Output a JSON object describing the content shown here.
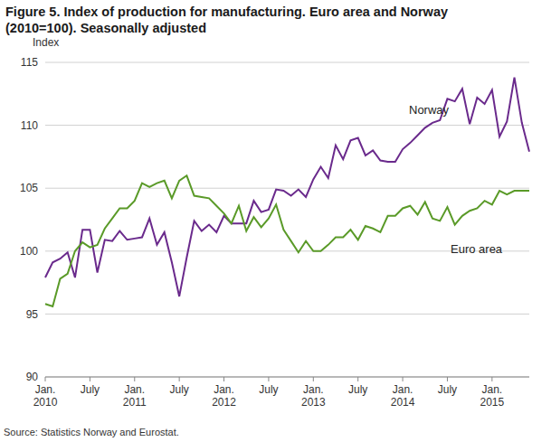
{
  "chart_data": {
    "type": "line",
    "title": "Figure 5. Index of production for manufacturing. Euro area and Norway (2010=100). Seasonally adjusted",
    "y_label": "Index",
    "source": "Source: Statistics Norway and Eurostat.",
    "categories": [
      "Jan. 2010",
      null,
      null,
      null,
      null,
      null,
      "July",
      null,
      null,
      null,
      null,
      null,
      "Jan. 2011",
      null,
      null,
      null,
      null,
      null,
      "July",
      null,
      null,
      null,
      null,
      null,
      "Jan. 2012",
      null,
      null,
      null,
      null,
      null,
      "July",
      null,
      null,
      null,
      null,
      null,
      "Jan. 2013",
      null,
      null,
      null,
      null,
      null,
      "July",
      null,
      null,
      null,
      null,
      null,
      "Jan. 2014",
      null,
      null,
      null,
      null,
      null,
      "July",
      null,
      null,
      null,
      null,
      null,
      "Jan. 2015",
      null,
      null,
      null,
      null,
      null
    ],
    "series": [
      {
        "name": "Norway",
        "color": "#6a2a8c",
        "values": [
          97.9,
          99.1,
          99.4,
          99.9,
          97.9,
          101.7,
          101.7,
          98.3,
          100.9,
          100.8,
          101.6,
          100.9,
          101.0,
          101.1,
          102.6,
          100.5,
          101.5,
          99.1,
          96.4,
          99.5,
          102.4,
          101.6,
          102.1,
          101.5,
          102.8,
          102.2,
          102.2,
          102.2,
          104.0,
          103.1,
          103.3,
          104.9,
          104.8,
          104.4,
          104.9,
          104.3,
          105.7,
          106.7,
          105.8,
          108.4,
          107.3,
          108.8,
          109.0,
          107.6,
          108.0,
          107.2,
          107.1,
          107.1,
          108.1,
          108.6,
          109.2,
          109.8,
          110.2,
          110.4,
          112.1,
          111.9,
          112.9,
          110.1,
          112.2,
          111.7,
          112.8,
          109.1,
          110.3,
          113.8,
          110.2,
          107.9
        ]
      },
      {
        "name": "Euro area",
        "color": "#5a9a28",
        "values": [
          95.8,
          95.6,
          97.8,
          98.2,
          100.0,
          100.7,
          100.3,
          100.5,
          101.8,
          102.6,
          103.4,
          103.4,
          104.0,
          105.4,
          105.1,
          105.4,
          105.6,
          104.2,
          105.6,
          106.0,
          104.4,
          104.3,
          104.2,
          103.6,
          103.0,
          102.2,
          103.6,
          101.6,
          102.7,
          101.9,
          102.6,
          103.7,
          101.7,
          100.8,
          99.9,
          100.8,
          100.0,
          100.0,
          100.5,
          101.1,
          101.1,
          101.7,
          100.9,
          102.0,
          101.8,
          101.5,
          102.8,
          102.8,
          103.4,
          103.6,
          102.9,
          103.9,
          102.6,
          102.4,
          103.5,
          102.1,
          102.8,
          103.2,
          103.4,
          104.0,
          103.7,
          104.8,
          104.5,
          104.8,
          104.8,
          104.8
        ]
      }
    ],
    "ylim": [
      90,
      115
    ],
    "yticks": [
      90,
      95,
      100,
      105,
      110,
      115
    ],
    "grid": true
  }
}
